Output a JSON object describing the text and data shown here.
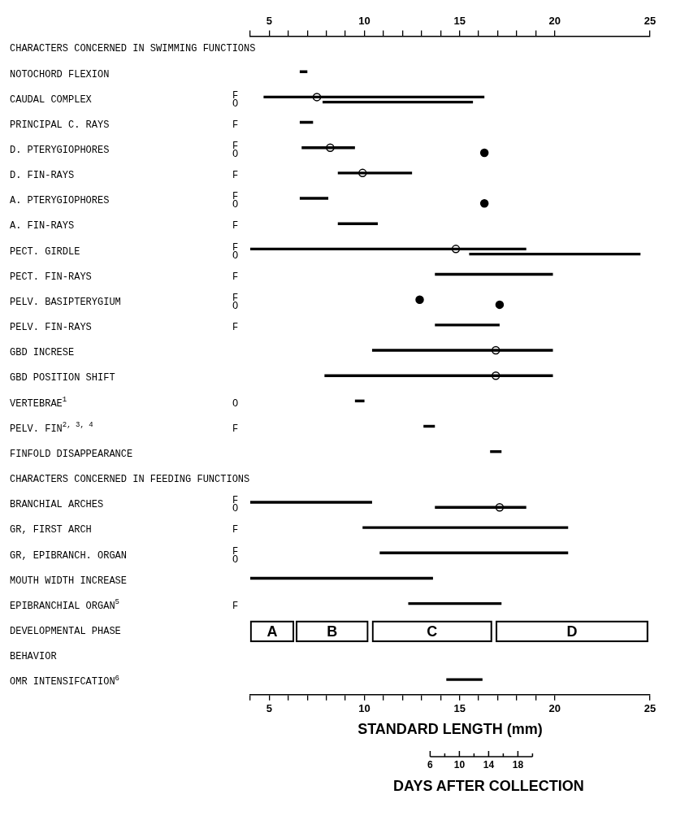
{
  "chart_data": {
    "type": "bar",
    "orientation": "horizontal",
    "xlabel": "STANDARD LENGTH (mm)",
    "annotations": [
      "6",
      "10",
      "14",
      "18",
      "DAYS AFTER COLLECTION"
    ],
    "categories": [
      "CHARACTERS CONCERNED IN SWIMMING FUNCTIONS",
      "NOTOCHORD FLEXION",
      "CAUDAL COMPLEX",
      "PRINCIPAL C. RAYS",
      "D. PTERYGIOPHORES",
      "D. FIN-RAYS",
      "A. PTERYGIOPHORES",
      "A. FIN-RAYS",
      "PECT. GIRDLE",
      "PECT. FIN-RAYS",
      "PELV. BASIPTERYGIUM",
      "PELV. FIN-RAYS",
      "GBD INCRESE",
      "GBD POSITION SHIFT",
      "VERTEBRAE$^{1}$",
      "PELV. FIN$^{2, 3, 4}$",
      "FINFOLD DISAPPEARANCE",
      "CHARACTERS CONCERNED IN FEEDING FUNCTIONS",
      "BRANCHIAL ARCHES",
      "GR, FIRST ARCH",
      "GR, EPIBRANCH. ORGAN",
      "MOUTH WIDTH INCREASE",
      "EPIBRANCHIAL ORGAN$^{5}$",
      "DEVELOPMENTAL PHASE",
      "BEHAVIOR",
      "OMR INTENSIFCATION$^{6}$"
    ],
    "y2_categories": [
      null,
      null,
      "F O",
      "F",
      "F O",
      "F",
      "F O",
      "F",
      "F O",
      "F",
      "F O",
      "F",
      null,
      null,
      "O",
      "F",
      null,
      null,
      "F O",
      "F",
      "F O",
      null,
      "F",
      null,
      null,
      null
    ],
    "series": [
      {
        "color": "#000000",
        "base": [
          null,
          6.6,
          4.7,
          6.6,
          6.7,
          8.6,
          6.6,
          8.6,
          4,
          13.7,
          null,
          13.7,
          10.4,
          7.9,
          9.5,
          13.1,
          16.6,
          null,
          4,
          9.9,
          10.8,
          4,
          12.3,
          null,
          null,
          14.3
        ],
        "values": [
          null,
          0.4,
          11.6,
          0.7,
          2.8,
          3.9,
          1.5,
          2.1,
          14.5,
          6.2,
          null,
          3.4,
          9.5,
          12.0,
          0.5,
          0.6,
          0.6,
          null,
          6.4,
          10.8,
          9.9,
          9.6,
          4.9,
          null,
          null,
          1.9
        ]
      },
      {
        "color": "#000000",
        "base": [
          null,
          null,
          7.8,
          null,
          null,
          null,
          null,
          null,
          15.5,
          null,
          null,
          null,
          null,
          null,
          null,
          null,
          null,
          null,
          13.7,
          null,
          null,
          null,
          null,
          null,
          null,
          null
        ],
        "values": [
          null,
          null,
          7.9,
          null,
          null,
          null,
          null,
          null,
          9.0,
          null,
          null,
          null,
          null,
          null,
          null,
          null,
          null,
          null,
          4.8,
          null,
          null,
          null,
          null,
          null,
          null,
          null
        ]
      },
      {
        "color": "#000000",
        "base": [
          null,
          null,
          null,
          null,
          null,
          null,
          null,
          null,
          null,
          null,
          null,
          null,
          null,
          null,
          null,
          null,
          null,
          null,
          null,
          null,
          null,
          null,
          null,
          4,
          null,
          null
        ],
        "values": [
          null,
          null,
          null,
          null,
          null,
          null,
          null,
          null,
          null,
          null,
          null,
          null,
          null,
          null,
          null,
          null,
          null,
          null,
          null,
          null,
          null,
          null,
          null,
          2.3,
          null,
          null
        ],
        "value_labels": [
          null,
          null,
          null,
          null,
          null,
          null,
          null,
          null,
          null,
          null,
          null,
          null,
          null,
          null,
          null,
          null,
          null,
          null,
          null,
          null,
          null,
          null,
          null,
          "A",
          null,
          null
        ]
      },
      {
        "color": "#000000",
        "base": [
          null,
          null,
          null,
          null,
          null,
          null,
          null,
          null,
          null,
          null,
          null,
          null,
          null,
          null,
          null,
          null,
          null,
          null,
          null,
          null,
          null,
          null,
          null,
          6.4,
          null,
          null
        ],
        "values": [
          null,
          null,
          null,
          null,
          null,
          null,
          null,
          null,
          null,
          null,
          null,
          null,
          null,
          null,
          null,
          null,
          null,
          null,
          null,
          null,
          null,
          null,
          null,
          3.8,
          null,
          null
        ],
        "value_labels": [
          null,
          null,
          null,
          null,
          null,
          null,
          null,
          null,
          null,
          null,
          null,
          null,
          null,
          null,
          null,
          null,
          null,
          null,
          null,
          null,
          null,
          null,
          null,
          "B",
          null,
          null
        ]
      },
      {
        "color": "#000000",
        "base": [
          null,
          null,
          null,
          null,
          null,
          null,
          null,
          null,
          null,
          null,
          null,
          null,
          null,
          null,
          null,
          null,
          null,
          null,
          null,
          null,
          null,
          null,
          null,
          10.4,
          null,
          null
        ],
        "values": [
          null,
          null,
          null,
          null,
          null,
          null,
          null,
          null,
          null,
          null,
          null,
          null,
          null,
          null,
          null,
          null,
          null,
          null,
          null,
          null,
          null,
          null,
          null,
          6.3,
          null,
          null
        ],
        "value_labels": [
          null,
          null,
          null,
          null,
          null,
          null,
          null,
          null,
          null,
          null,
          null,
          null,
          null,
          null,
          null,
          null,
          null,
          null,
          null,
          null,
          null,
          null,
          null,
          "C",
          null,
          null
        ]
      },
      {
        "color": "#000000",
        "base": [
          null,
          null,
          null,
          null,
          null,
          null,
          null,
          null,
          null,
          null,
          null,
          null,
          null,
          null,
          null,
          null,
          null,
          null,
          null,
          null,
          null,
          null,
          null,
          16.9,
          null,
          null
        ],
        "values": [
          null,
          null,
          null,
          null,
          null,
          null,
          null,
          null,
          null,
          null,
          null,
          null,
          null,
          null,
          null,
          null,
          null,
          null,
          null,
          null,
          null,
          null,
          null,
          8.0,
          null,
          null
        ],
        "value_labels": [
          null,
          null,
          null,
          null,
          null,
          null,
          null,
          null,
          null,
          null,
          null,
          null,
          null,
          null,
          null,
          null,
          null,
          null,
          null,
          null,
          null,
          null,
          null,
          "D",
          null,
          null
        ]
      },
      {
        "type": "scatter",
        "color": "#000000",
        "marker": "circle",
        "x": [
          "CAUDAL COMPLEX",
          "D. PTERYGIOPHORES",
          "D. FIN-RAYS",
          "PECT. GIRDLE",
          "GBD INCRESE",
          "GBD POSITION SHIFT"
        ],
        "values": [
          7.5,
          8.2,
          9.9,
          14.8,
          16.9,
          16.9
        ]
      },
      {
        "type": "scatter",
        "color": "#000000",
        "marker": "circle",
        "x": [
          "BRANCHIAL ARCHES"
        ],
        "values": [
          17.1
        ]
      },
      {
        "type": "scatter",
        "color": "#000000",
        "marker": "circle",
        "x": [
          "PELV. BASIPTERYGIUM"
        ],
        "values": [
          12.9
        ]
      },
      {
        "type": "scatter",
        "color": "#000000",
        "marker": "circle",
        "x": [
          "D. PTERYGIOPHORES",
          "A. PTERYGIOPHORES",
          "PELV. BASIPTERYGIUM"
        ],
        "values": [
          16.3,
          16.3,
          17.1
        ]
      }
    ],
    "xlim": [
      4,
      25
    ],
    "xticks": [
      {
        "value": 4,
        "label": null
      },
      5,
      {
        "value": 6,
        "label": null
      },
      {
        "value": 7,
        "label": null
      },
      {
        "value": 8,
        "label": null
      },
      {
        "value": 9,
        "label": null
      },
      10,
      {
        "value": 11,
        "label": null
      },
      {
        "value": 12,
        "label": null
      },
      {
        "value": 13,
        "label": null
      },
      {
        "value": 14,
        "label": null
      },
      15,
      {
        "value": 16,
        "label": null
      },
      {
        "value": 17,
        "label": null
      },
      {
        "value": 18,
        "label": null
      },
      {
        "value": 19,
        "label": null
      },
      20,
      25
    ],
    "x2lim": [
      4,
      25
    ],
    "x2ticks": [
      {
        "value": 4,
        "label": null
      },
      5,
      {
        "value": 6,
        "label": null
      },
      {
        "value": 7,
        "label": null
      },
      {
        "value": 8,
        "label": null
      },
      {
        "value": 9,
        "label": null
      },
      10,
      {
        "value": 11,
        "label": null
      },
      {
        "value": 12,
        "label": null
      },
      {
        "value": 13,
        "label": null
      },
      {
        "value": 14,
        "label": null
      },
      15,
      {
        "value": 16,
        "label": null
      },
      {
        "value": 17,
        "label": null
      },
      {
        "value": 18,
        "label": null
      },
      {
        "value": 19,
        "label": null
      },
      20,
      25
    ]
  }
}
